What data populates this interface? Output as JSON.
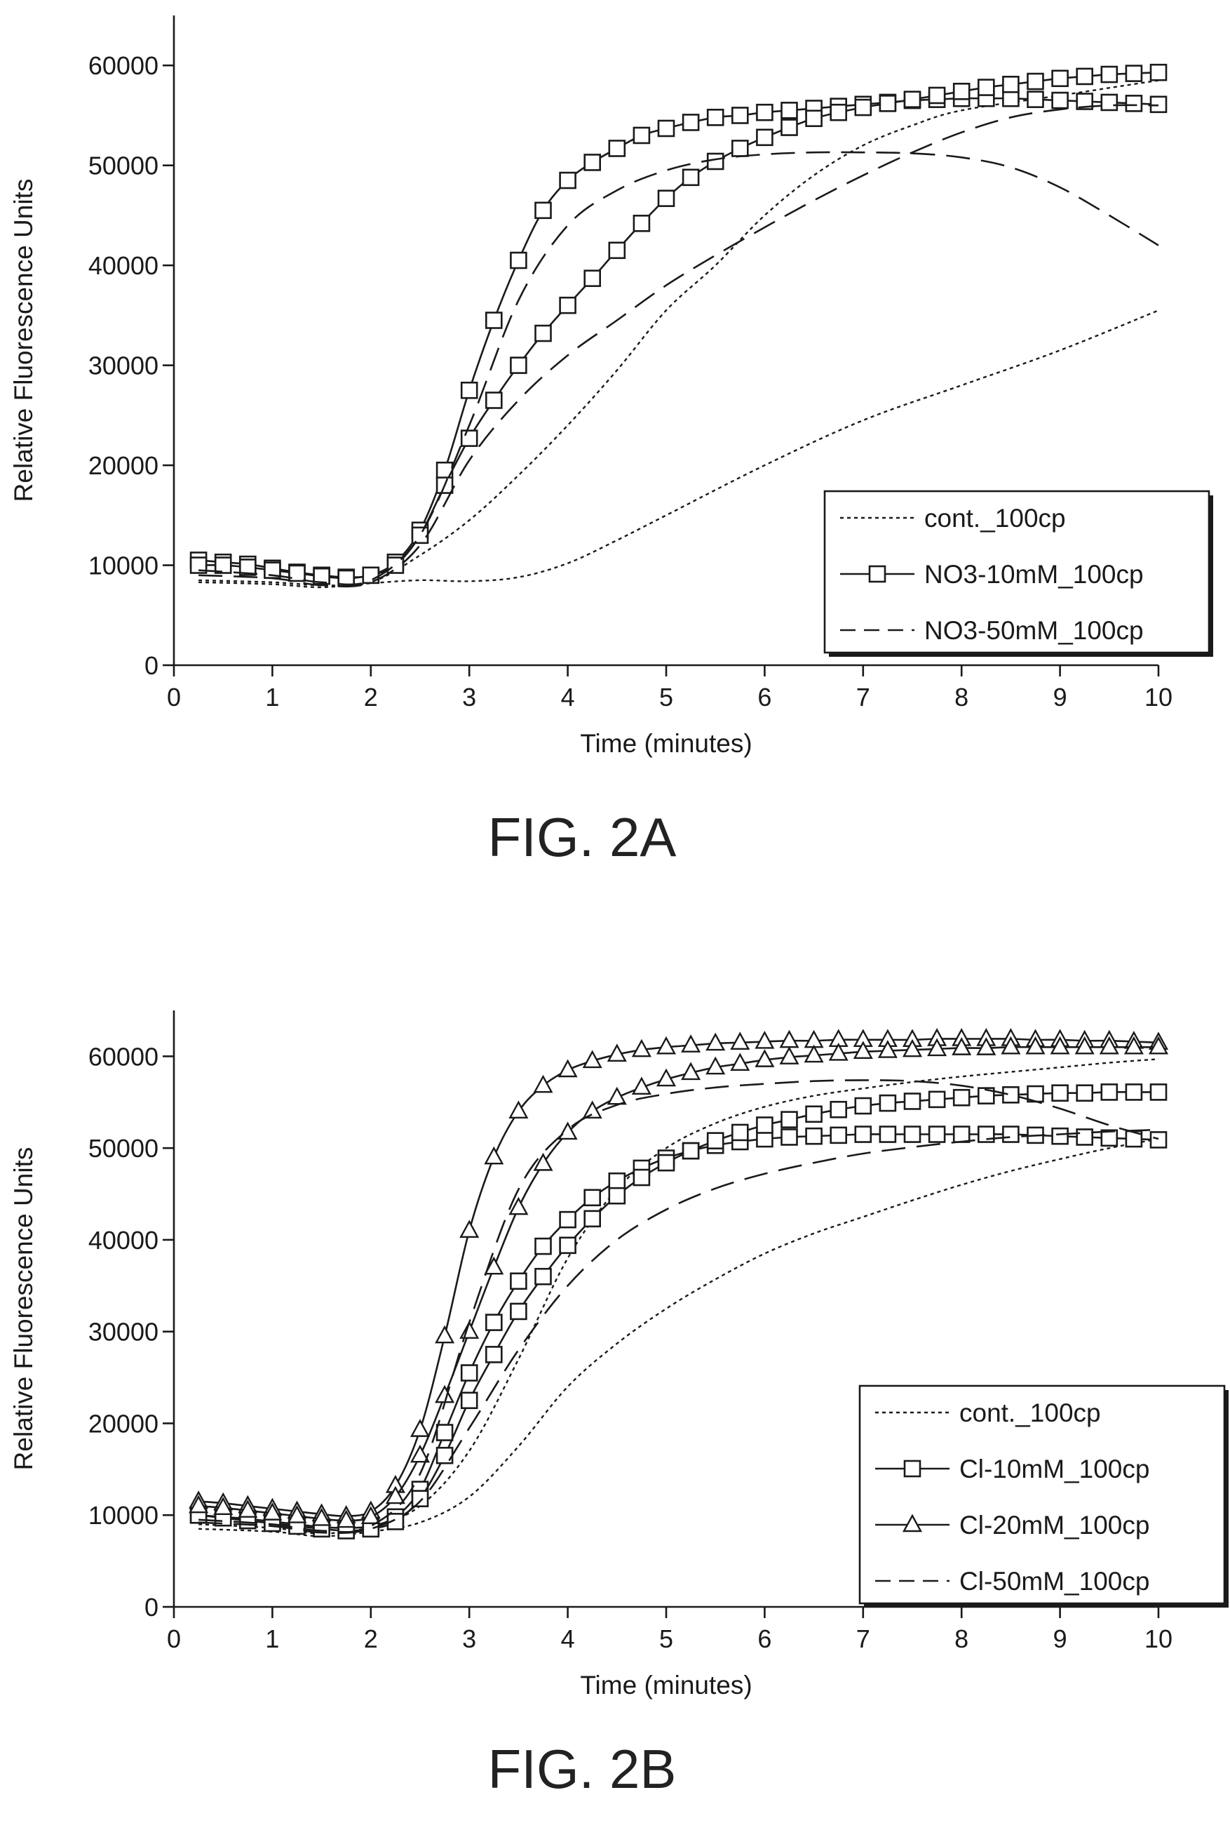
{
  "chart_data": [
    {
      "type": "line",
      "caption": "FIG. 2A",
      "title": "",
      "xlabel": "Time (minutes)",
      "ylabel": "Relative Fluorescence Units",
      "xlim": [
        0,
        10
      ],
      "ylim": [
        0,
        65000
      ],
      "xticks": [
        0,
        1,
        2,
        3,
        4,
        5,
        6,
        7,
        8,
        9,
        10
      ],
      "yticks": [
        0,
        10000,
        20000,
        30000,
        40000,
        50000,
        60000
      ],
      "legend_position": "bottom-right",
      "grid": false,
      "series": [
        {
          "name": "cont._100cp",
          "style": "dotted",
          "marker": "none",
          "x": [
            0.25,
            1,
            1.5,
            2,
            2.5,
            3,
            3.5,
            4,
            4.5,
            5,
            6,
            7,
            8,
            9,
            10
          ],
          "y": [
            8300,
            8100,
            7800,
            8200,
            8500,
            8400,
            8800,
            10200,
            12500,
            15000,
            20000,
            24500,
            28000,
            31500,
            35500
          ]
        },
        {
          "name": "cont._100cp",
          "style": "dotted",
          "marker": "none",
          "x": [
            0.25,
            1,
            1.5,
            2,
            2.5,
            3,
            3.5,
            4,
            4.5,
            5,
            5.5,
            6,
            6.5,
            7,
            7.5,
            8,
            9,
            10
          ],
          "y": [
            8500,
            8300,
            8000,
            8300,
            11000,
            14500,
            19000,
            24000,
            29500,
            35500,
            40000,
            45000,
            49000,
            52000,
            54000,
            55500,
            57000,
            58500
          ]
        },
        {
          "name": "NO3-10mM_100cp",
          "style": "solid",
          "marker": "square",
          "x": [
            0.25,
            0.5,
            0.75,
            1,
            1.25,
            1.5,
            1.75,
            2,
            2.25,
            2.5,
            2.75,
            3,
            3.25,
            3.5,
            3.75,
            4,
            4.25,
            4.5,
            4.75,
            5,
            5.25,
            5.5,
            5.75,
            6,
            6.25,
            6.5,
            6.75,
            7,
            7.25,
            7.5,
            7.75,
            8,
            8.25,
            8.5,
            8.75,
            9,
            9.25,
            9.5,
            9.75,
            10
          ],
          "y": [
            10500,
            10300,
            10100,
            9700,
            9300,
            9000,
            8800,
            9000,
            10300,
            13500,
            19500,
            27500,
            34500,
            40500,
            45500,
            48500,
            50300,
            51700,
            53000,
            53700,
            54300,
            54800,
            55000,
            55300,
            55500,
            55700,
            55900,
            56100,
            56300,
            56500,
            56600,
            56700,
            56700,
            56700,
            56600,
            56500,
            56400,
            56300,
            56200,
            56100
          ]
        },
        {
          "name": "NO3-10mM_100cp",
          "style": "solid",
          "marker": "square",
          "x": [
            0.25,
            0.5,
            0.75,
            1,
            1.25,
            1.5,
            1.75,
            2,
            2.25,
            2.5,
            2.75,
            3,
            3.25,
            3.5,
            3.75,
            4,
            4.25,
            4.5,
            4.75,
            5,
            5.25,
            5.5,
            5.75,
            6,
            6.25,
            6.5,
            6.75,
            7,
            7.25,
            7.5,
            7.75,
            8,
            8.25,
            8.5,
            8.75,
            9,
            9.25,
            9.5,
            9.75,
            10
          ],
          "y": [
            10000,
            10000,
            9800,
            9500,
            9200,
            8900,
            8700,
            9000,
            10000,
            13000,
            18000,
            22700,
            26500,
            30000,
            33200,
            36000,
            38700,
            41500,
            44200,
            46700,
            48800,
            50400,
            51700,
            52800,
            53800,
            54700,
            55300,
            55800,
            56200,
            56600,
            57000,
            57400,
            57800,
            58100,
            58400,
            58700,
            58900,
            59100,
            59200,
            59300
          ]
        },
        {
          "name": "NO3-50mM_100cp",
          "style": "dashed",
          "marker": "none",
          "x": [
            0.25,
            1,
            1.5,
            2,
            2.5,
            3,
            3.5,
            4,
            4.5,
            5,
            5.5,
            6,
            6.5,
            7,
            7.5,
            8,
            8.5,
            9,
            9.5,
            10
          ],
          "y": [
            9500,
            9000,
            8300,
            8500,
            13000,
            24000,
            36500,
            44000,
            47500,
            49500,
            50600,
            51100,
            51300,
            51300,
            51200,
            50800,
            49800,
            47800,
            45000,
            42000
          ]
        },
        {
          "name": "NO3-50mM_100cp",
          "style": "dashed",
          "marker": "none",
          "x": [
            0.25,
            1,
            1.5,
            2,
            2.5,
            3,
            3.5,
            4,
            4.5,
            5,
            5.5,
            6,
            6.5,
            7,
            7.5,
            8,
            8.5,
            9,
            9.5,
            10
          ],
          "y": [
            9000,
            8700,
            8000,
            8300,
            12000,
            20500,
            26500,
            31000,
            34500,
            38000,
            41000,
            43800,
            46500,
            49000,
            51300,
            53300,
            54800,
            55600,
            56000,
            56000
          ]
        }
      ]
    },
    {
      "type": "line",
      "caption": "FIG. 2B",
      "title": "",
      "xlabel": "Time (minutes)",
      "ylabel": "Relative Fluorescence Units",
      "xlim": [
        0,
        10
      ],
      "ylim": [
        0,
        65000
      ],
      "xticks": [
        0,
        1,
        2,
        3,
        4,
        5,
        6,
        7,
        8,
        9,
        10
      ],
      "yticks": [
        0,
        10000,
        20000,
        30000,
        40000,
        50000,
        60000
      ],
      "legend_position": "bottom-right",
      "grid": false,
      "series": [
        {
          "name": "cont._100cp",
          "style": "dotted",
          "marker": "none",
          "x": [
            0.25,
            1,
            1.5,
            2,
            2.5,
            3,
            3.5,
            4,
            4.5,
            5,
            5.5,
            6,
            6.5,
            7,
            7.5,
            8,
            8.5,
            9,
            9.5,
            10
          ],
          "y": [
            8500,
            8200,
            7700,
            8200,
            9200,
            12000,
            17500,
            24000,
            28700,
            32500,
            35700,
            38500,
            40700,
            42500,
            44300,
            46000,
            47500,
            48800,
            50000,
            51000
          ]
        },
        {
          "name": "cont._100cp",
          "style": "dotted",
          "marker": "none",
          "x": [
            0.25,
            1,
            1.5,
            2,
            2.5,
            3,
            3.5,
            4,
            4.5,
            5,
            5.5,
            6,
            6.5,
            7,
            7.5,
            8,
            8.5,
            9,
            9.5,
            10
          ],
          "y": [
            9000,
            8600,
            8000,
            8700,
            11000,
            17000,
            27000,
            38000,
            45500,
            50000,
            52700,
            54500,
            55700,
            56500,
            57200,
            57800,
            58300,
            58800,
            59300,
            59700
          ]
        },
        {
          "name": "Cl-10mM_100cp",
          "style": "solid",
          "marker": "square",
          "x": [
            0.25,
            0.5,
            0.75,
            1,
            1.25,
            1.5,
            1.75,
            2,
            2.25,
            2.5,
            2.75,
            3,
            3.25,
            3.5,
            3.75,
            4,
            4.25,
            4.5,
            4.75,
            5,
            5.25,
            5.5,
            5.75,
            6,
            6.25,
            6.5,
            6.75,
            7,
            7.25,
            7.5,
            7.75,
            8,
            8.25,
            8.5,
            8.75,
            9,
            9.25,
            9.5,
            9.75,
            10
          ],
          "y": [
            10000,
            9800,
            9600,
            9300,
            9000,
            8700,
            8600,
            8800,
            9800,
            12800,
            19000,
            25500,
            31000,
            35500,
            39300,
            42200,
            44600,
            46400,
            47800,
            48900,
            49700,
            50300,
            50700,
            51000,
            51200,
            51300,
            51400,
            51500,
            51500,
            51500,
            51500,
            51500,
            51500,
            51500,
            51400,
            51300,
            51200,
            51100,
            51000,
            50900
          ]
        },
        {
          "name": "Cl-10mM_100cp",
          "style": "solid",
          "marker": "square",
          "x": [
            0.25,
            0.5,
            0.75,
            1,
            1.25,
            1.5,
            1.75,
            2,
            2.25,
            2.5,
            2.75,
            3,
            3.25,
            3.5,
            3.75,
            4,
            4.25,
            4.5,
            4.75,
            5,
            5.25,
            5.5,
            5.75,
            6,
            6.25,
            6.5,
            6.75,
            7,
            7.25,
            7.5,
            7.75,
            8,
            8.25,
            8.5,
            8.75,
            9,
            9.25,
            9.5,
            9.75,
            10
          ],
          "y": [
            10000,
            9700,
            9400,
            9100,
            8800,
            8500,
            8300,
            8500,
            9300,
            11800,
            16500,
            22500,
            27500,
            32200,
            36000,
            39400,
            42300,
            44800,
            46800,
            48400,
            49700,
            50800,
            51700,
            52500,
            53100,
            53700,
            54200,
            54600,
            54900,
            55100,
            55300,
            55500,
            55700,
            55800,
            55900,
            56000,
            56000,
            56100,
            56100,
            56100
          ]
        },
        {
          "name": "Cl-20mM_100cp",
          "style": "solid",
          "marker": "triangle",
          "x": [
            0.25,
            0.5,
            0.75,
            1,
            1.25,
            1.5,
            1.75,
            2,
            2.25,
            2.5,
            2.75,
            3,
            3.25,
            3.5,
            3.75,
            4,
            4.25,
            4.5,
            4.75,
            5,
            5.25,
            5.5,
            5.75,
            6,
            6.25,
            6.5,
            6.75,
            7,
            7.25,
            7.5,
            7.75,
            8,
            8.25,
            8.5,
            8.75,
            9,
            9.25,
            9.5,
            9.75,
            10
          ],
          "y": [
            11500,
            11300,
            11000,
            10700,
            10400,
            10100,
            9900,
            10400,
            13200,
            19300,
            29500,
            41000,
            49000,
            54000,
            56800,
            58500,
            59500,
            60200,
            60700,
            61000,
            61200,
            61400,
            61500,
            61600,
            61700,
            61700,
            61800,
            61800,
            61800,
            61800,
            61900,
            61900,
            61900,
            61900,
            61800,
            61800,
            61700,
            61700,
            61600,
            61500
          ]
        },
        {
          "name": "Cl-20mM_100cp",
          "style": "solid",
          "marker": "triangle",
          "x": [
            0.25,
            0.5,
            0.75,
            1,
            1.25,
            1.5,
            1.75,
            2,
            2.25,
            2.5,
            2.75,
            3,
            3.25,
            3.5,
            3.75,
            4,
            4.25,
            4.5,
            4.75,
            5,
            5.25,
            5.5,
            5.75,
            6,
            6.25,
            6.5,
            6.75,
            7,
            7.25,
            7.5,
            7.75,
            8,
            8.25,
            8.5,
            8.75,
            9,
            9.25,
            9.5,
            9.75,
            10
          ],
          "y": [
            11000,
            10800,
            10500,
            10200,
            9900,
            9600,
            9400,
            9800,
            12000,
            16500,
            23000,
            30000,
            37000,
            43500,
            48300,
            51700,
            54000,
            55500,
            56600,
            57500,
            58200,
            58800,
            59200,
            59600,
            59900,
            60100,
            60300,
            60500,
            60600,
            60700,
            60800,
            60900,
            60900,
            61000,
            61000,
            61000,
            61000,
            61000,
            61000,
            61000
          ]
        },
        {
          "name": "Cl-50mM_100cp",
          "style": "dashed",
          "marker": "none",
          "x": [
            0.25,
            1,
            1.5,
            2,
            2.5,
            3,
            3.5,
            4,
            4.5,
            5,
            5.5,
            6,
            6.5,
            7,
            7.5,
            8,
            8.5,
            9,
            9.5,
            10
          ],
          "y": [
            9500,
            9000,
            8300,
            8800,
            14500,
            31000,
            45500,
            52000,
            54700,
            55900,
            56600,
            57000,
            57300,
            57400,
            57300,
            56800,
            55800,
            54300,
            52500,
            51000
          ]
        },
        {
          "name": "Cl-50mM_100cp",
          "style": "dashed",
          "marker": "none",
          "x": [
            0.25,
            1,
            1.5,
            2,
            2.5,
            3,
            3.5,
            4,
            4.5,
            5,
            5.5,
            6,
            6.5,
            7,
            7.5,
            8,
            8.5,
            9,
            9.5,
            10
          ],
          "y": [
            9200,
            8800,
            8100,
            8500,
            11500,
            19500,
            28000,
            35000,
            40000,
            43300,
            45600,
            47200,
            48400,
            49400,
            50100,
            50700,
            51200,
            51500,
            51800,
            52000
          ]
        }
      ]
    }
  ]
}
